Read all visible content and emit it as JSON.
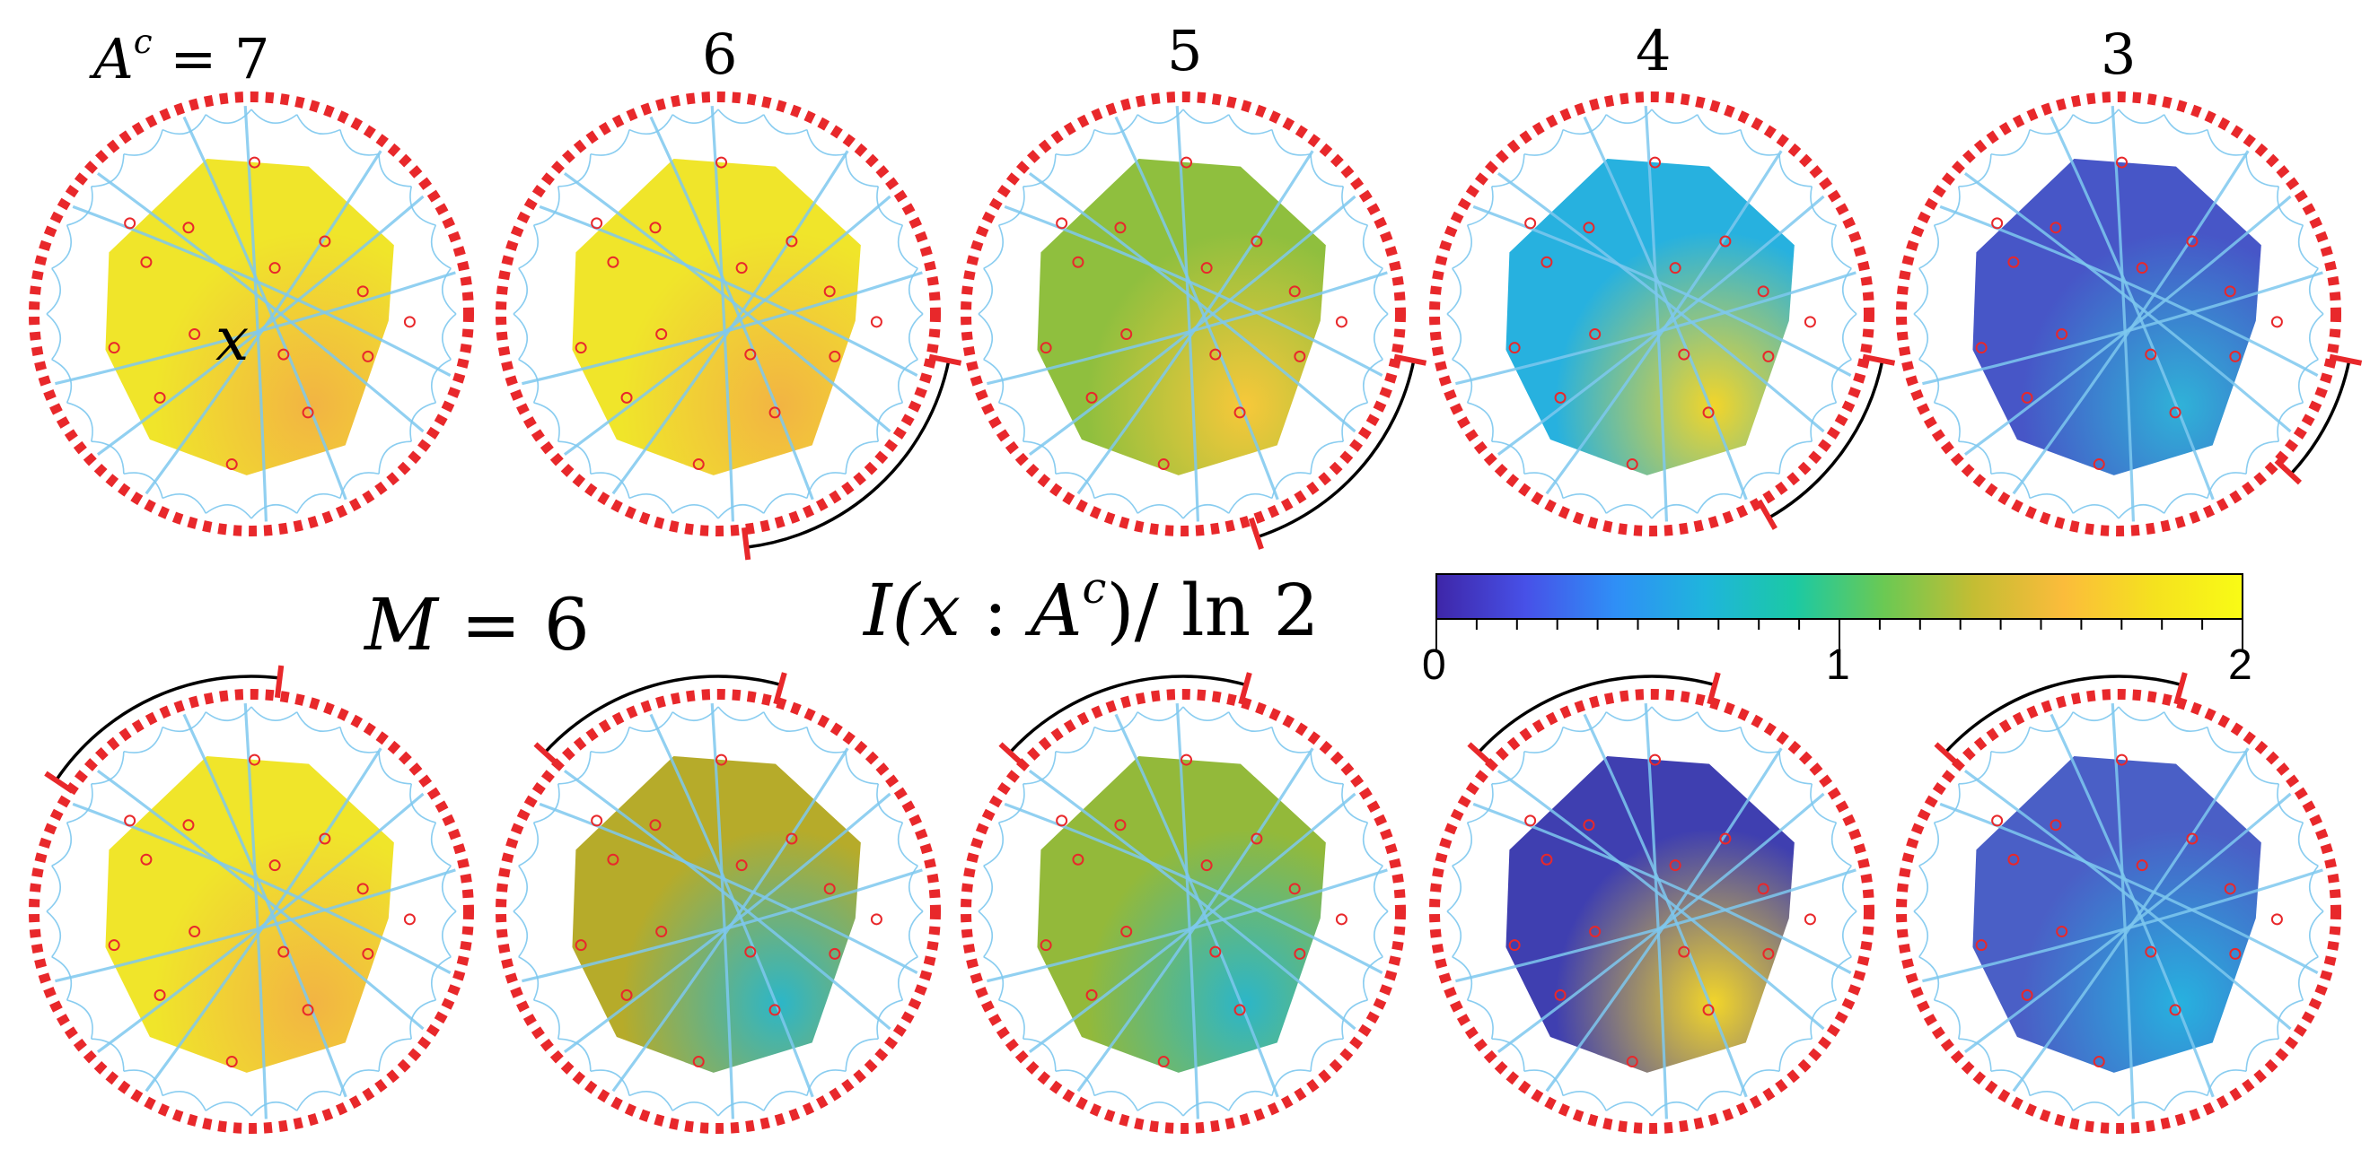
{
  "header": {
    "col_labels": [
      "A^c = 7",
      "6",
      "5",
      "4",
      "3"
    ],
    "col_values": [
      7,
      6,
      5,
      4,
      3
    ],
    "ac_symbol": "A",
    "ac_sup": "c",
    "ac_eq": " = 7"
  },
  "site_label": "x",
  "m_label": {
    "text": "M = 6",
    "var": "M",
    "eq": " = 6"
  },
  "quantity_label": {
    "text": "I(x : A^c)/ ln 2",
    "pre": "I(",
    "x": "x",
    "mid": " : ",
    "A": "A",
    "sup": "c",
    "post": ")/ ln 2"
  },
  "colorbar": {
    "min": 0,
    "max": 2,
    "tick_labels": [
      "0",
      "1",
      "2"
    ],
    "colormap": [
      "#3e26a8",
      "#4751e8",
      "#2f8ff6",
      "#1fb5dc",
      "#1bc9a4",
      "#6bc953",
      "#c4bd33",
      "#fbbc3b",
      "#f5e11f",
      "#f9fb15"
    ]
  },
  "colors": {
    "boundary": "#e8282b",
    "bulk_sites": "#e8282b",
    "geodesics": "#7ec8ef",
    "region_arc": "#000000"
  },
  "panels": [
    {
      "row": "top",
      "col": 0,
      "fill": "#f0e52a",
      "hot": [
        "#f2b443",
        "#f2b443"
      ],
      "hot_spot": "edge"
    },
    {
      "row": "top",
      "col": 1,
      "fill": "#f0e52a",
      "hot": [
        "#f2b443",
        "#f2b443"
      ],
      "hot_spot": "edge"
    },
    {
      "row": "top",
      "col": 2,
      "fill": "#8fbf3e",
      "hot": [
        "#f7c83a",
        "#1fb0b6"
      ],
      "hot_spot": "lower-right"
    },
    {
      "row": "top",
      "col": 3,
      "fill": "#27b1df",
      "hot": [
        "#f2d52a",
        "#3a7ae8"
      ],
      "hot_spot": "lower-right"
    },
    {
      "row": "top",
      "col": 4,
      "fill": "#4756c7",
      "hot": [
        "#2fb2d8",
        "#4f78df"
      ],
      "hot_spot": "lower-right"
    },
    {
      "row": "bottom",
      "col": 0,
      "fill": "#f0e52a",
      "hot": [
        "#f2b443",
        "#f2b443"
      ],
      "hot_spot": "edge"
    },
    {
      "row": "bottom",
      "col": 1,
      "fill": "#b6ab2a",
      "hot": [
        "#2cb6c8",
        "#e8c03a"
      ],
      "hot_spot": "mixed"
    },
    {
      "row": "bottom",
      "col": 2,
      "fill": "#93b93a",
      "hot": [
        "#2cb6c8",
        "#e8c03a"
      ],
      "hot_spot": "mixed"
    },
    {
      "row": "bottom",
      "col": 3,
      "fill": "#3f3fb0",
      "hot": [
        "#f2d52a",
        "#1fb0b6"
      ],
      "hot_spot": "corners"
    },
    {
      "row": "bottom",
      "col": 4,
      "fill": "#4a5fc6",
      "hot": [
        "#27b1df",
        "#27b1df"
      ],
      "hot_spot": "corners"
    }
  ]
}
